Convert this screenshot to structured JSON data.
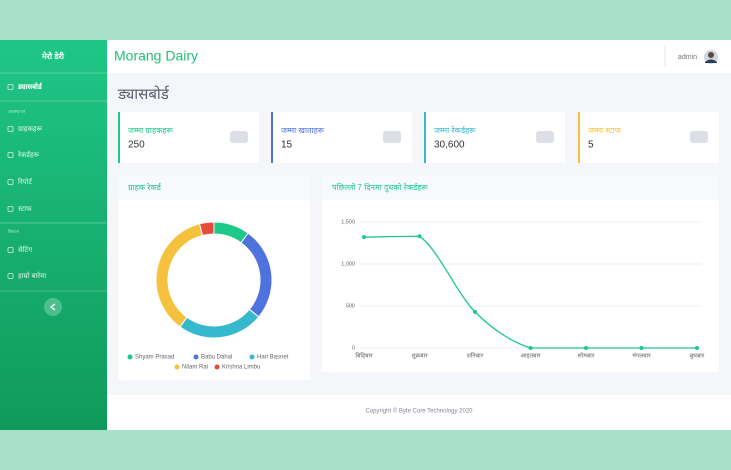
{
  "sidebar": {
    "brand": "मेरो डेरी",
    "sections": [
      "व्यवस्थापन",
      "सिस्टम"
    ],
    "menu": [
      "ड्यासबोर्ड",
      "ग्राहकहरू",
      "रेकर्डहरू",
      "रिपोर्ट",
      "स्टाफ",
      "सेटिंग",
      "हाम्रो बारेमा"
    ]
  },
  "header": {
    "title": "Morang Dairy",
    "user": "admin"
  },
  "page_title": "ड्यासबोर्ड",
  "cards": [
    {
      "label": "जम्मा ग्राहकहरू",
      "value": "250"
    },
    {
      "label": "जम्मा खाताहरू",
      "value": "15"
    },
    {
      "label": "जम्मा रेकर्डहरू",
      "value": "30,600"
    },
    {
      "label": "जम्मा स्टाफ",
      "value": "5"
    }
  ],
  "chart_data": [
    {
      "type": "doughnut",
      "title": "ग्राहक रेकर्ड",
      "categories": [
        "Shyam Prasad",
        "Babu Dahal",
        "Hari Basnet",
        "Nilam Rai",
        "Krishna Limbu"
      ],
      "values": [
        10,
        26,
        24,
        36,
        4
      ],
      "colors": [
        "#1cc88a",
        "#4e73df",
        "#36b9cc",
        "#f6c23e",
        "#e74a3b"
      ]
    },
    {
      "type": "line",
      "title": "पछिल्लो 7 दिनमा दुधको रेकर्डहरू",
      "categories": [
        "बिहिबार",
        "शुक्रबार",
        "शनिबार",
        "आइतबार",
        "सोमबार",
        "मंगलबार",
        "बुधबार"
      ],
      "values": [
        1320,
        1330,
        430,
        0,
        0,
        0,
        0
      ],
      "color": "#1cc88a",
      "ylim": [
        0,
        1500
      ],
      "yticks": [
        0,
        500,
        {
          "value": 1000,
          "label": "1,000"
        },
        {
          "value": 1500,
          "label": "1,500"
        }
      ],
      "grid": true
    }
  ],
  "footer": "Copyright © Byte Core Technology 2020"
}
